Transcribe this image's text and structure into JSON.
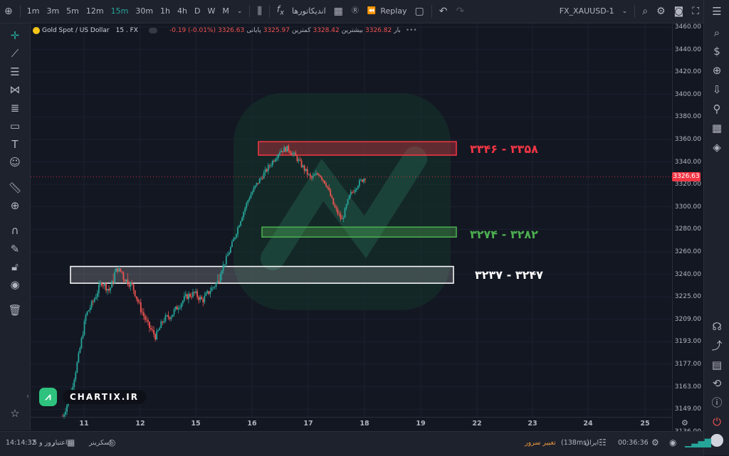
{
  "topbar": {
    "timeframes": [
      "1m",
      "3m",
      "5m",
      "12m",
      "15m",
      "30m",
      "1h",
      "4h",
      "D",
      "W",
      "M"
    ],
    "active_timeframe": "15m",
    "indicators_label": "اندیکاتورها",
    "replay_label": "Replay",
    "symbol": "FX_XAUUSD-1"
  },
  "legend": {
    "title": "Gold Spot / US Dollar",
    "interval": "15 . FX",
    "bar_label": "بار",
    "bar_value": "3326.82",
    "high_label": "بیشترین",
    "high_value": "3328.42",
    "low_label": "کمترین",
    "low_value": "3325.97",
    "close_label": "پایانی",
    "close_value": "3326.63",
    "change": "-0.19 (-0.01%)"
  },
  "zones": [
    {
      "label": "۳۳۴۶ - ۳۳۵۸",
      "color": "#f23645"
    },
    {
      "label": "۳۲۷۴ - ۳۲۸۲",
      "color": "#4caf50"
    },
    {
      "label": "۳۲۳۷ - ۳۲۴۷",
      "color": "#ffffff"
    }
  ],
  "current_price": "3326.63",
  "y_axis_labels": [
    "3460.00",
    "3440.00",
    "3420.00",
    "3400.00",
    "3380.00",
    "3360.00",
    "3340.00",
    "3320.00",
    "3300.00",
    "3280.00",
    "3260.00",
    "3240.00",
    "3225.00",
    "3209.00",
    "3193.00",
    "3177.00",
    "3163.00",
    "3149.00",
    "3136.00"
  ],
  "x_axis_labels": [
    "11",
    "12",
    "15",
    "16",
    "17",
    "18",
    "19",
    "22",
    "23",
    "24",
    "25"
  ],
  "bottombar": {
    "datetime": "14:14:32",
    "credit_label": "اعتبار",
    "credit_value": "5 روز و",
    "screener_label": "اسکرینر",
    "change_server_label": "تغییر سرور",
    "server_label": "ایران",
    "ping": "(138ms)",
    "clock": "00:36:36"
  },
  "logo": {
    "text": "CHARTIX.IR"
  },
  "colors": {
    "up": "#26a69a",
    "down": "#ef5350",
    "accent": "#26a69a",
    "background": "#131722"
  },
  "chart_data": {
    "type": "candlestick",
    "title": "Gold Spot / US Dollar",
    "interval": "15",
    "x": [
      "11",
      "12",
      "15",
      "16",
      "17",
      "18"
    ],
    "close_path": [
      3145,
      3160,
      3185,
      3215,
      3225,
      3238,
      3232,
      3245,
      3240,
      3235,
      3220,
      3208,
      3200,
      3212,
      3215,
      3222,
      3228,
      3230,
      3225,
      3232,
      3238,
      3252,
      3270,
      3290,
      3308,
      3320,
      3330,
      3340,
      3350,
      3352,
      3345,
      3335,
      3325,
      3330,
      3320,
      3300,
      3288,
      3310,
      3320,
      3326.63
    ],
    "ylim": [
      3130,
      3465
    ],
    "zones": [
      {
        "low": 3346,
        "high": 3358,
        "color": "#f23645"
      },
      {
        "low": 3274,
        "high": 3282,
        "color": "#4caf50"
      },
      {
        "low": 3237,
        "high": 3247,
        "color": "#ffffff"
      }
    ],
    "last": 3326.63
  }
}
